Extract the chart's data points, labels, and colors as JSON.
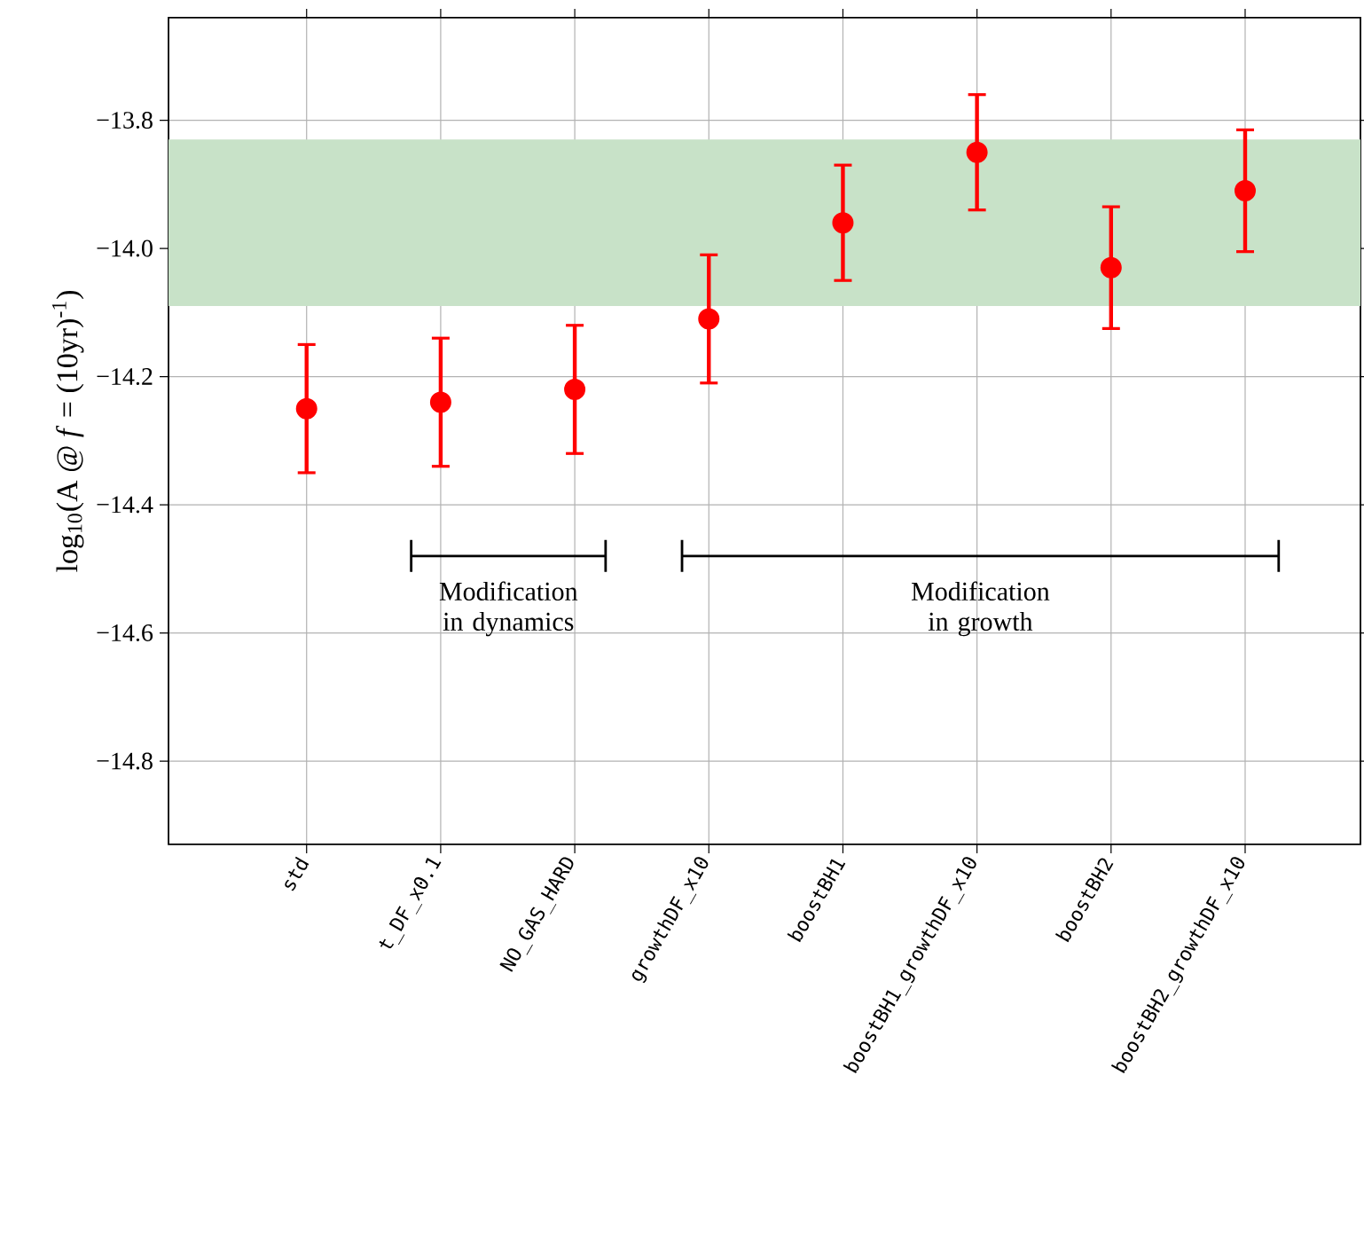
{
  "chart_data": {
    "type": "scatter",
    "ylabel": "log$_{10}$(A @ *f* = (10yr)$^{-1}$)",
    "categories": [
      "std",
      "t_DF_x0.1",
      "NO_GAS_HARD",
      "growthDF_x10",
      "boostBH1",
      "boostBH1_growthDF_x10",
      "boostBH2",
      "boostBH2_growthDF_x10"
    ],
    "values": [
      -14.25,
      -14.24,
      -14.22,
      -14.11,
      -13.96,
      -13.85,
      -14.03,
      -13.91
    ],
    "errors": [
      0.1,
      0.1,
      0.1,
      0.1,
      0.09,
      0.09,
      0.095,
      0.095
    ],
    "color": "#ff0000",
    "marker": "circle",
    "ylim": [
      -14.93,
      -13.64
    ],
    "yticks": [
      {
        "value": -14.8,
        "label": "−14.8"
      },
      {
        "value": -14.6,
        "label": "−14.6"
      },
      {
        "value": -14.4,
        "label": "−14.4"
      },
      {
        "value": -14.2,
        "label": "−14.2"
      },
      {
        "value": -14.0,
        "label": "−14.0"
      },
      {
        "value": -13.8,
        "label": "−13.8"
      }
    ],
    "bands": [
      {
        "axis": "y",
        "from": -14.09,
        "to": -13.83,
        "color": "#c8e2c8"
      }
    ],
    "annotations": [
      "Modification in dynamics",
      "Modification in growth"
    ],
    "grid": true
  }
}
